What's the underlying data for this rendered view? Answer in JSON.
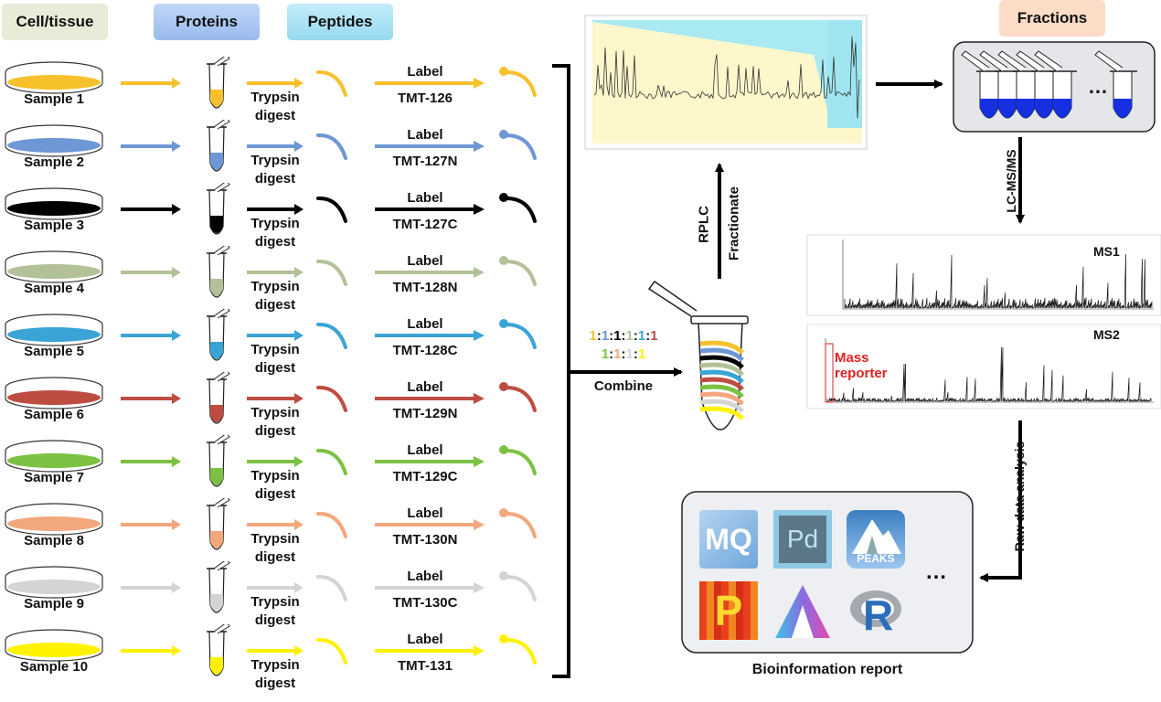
{
  "headers": {
    "cell_tissue": "Cell/tissue",
    "proteins": "Proteins",
    "peptides": "Peptides",
    "fractions": "Fractions"
  },
  "samples": [
    {
      "name": "Sample 1",
      "tag": "TMT-126",
      "color": "#F7C12C"
    },
    {
      "name": "Sample 2",
      "tag": "TMT-127N",
      "color": "#6D97D5"
    },
    {
      "name": "Sample 3",
      "tag": "TMT-127C",
      "color": "#000000"
    },
    {
      "name": "Sample 4",
      "tag": "TMT-128N",
      "color": "#B3C198"
    },
    {
      "name": "Sample 5",
      "tag": "TMT-128C",
      "color": "#3AA4D6"
    },
    {
      "name": "Sample 6",
      "tag": "TMT-129N",
      "color": "#BE4D41"
    },
    {
      "name": "Sample 7",
      "tag": "TMT-129C",
      "color": "#7BC142"
    },
    {
      "name": "Sample 8",
      "tag": "TMT-130N",
      "color": "#F2A77C"
    },
    {
      "name": "Sample 9",
      "tag": "TMT-130C",
      "color": "#D4D4D4"
    },
    {
      "name": "Sample 10",
      "tag": "TMT-131",
      "color": "#FFF200"
    }
  ],
  "step_labels": {
    "trypsin": "Trypsin",
    "digest": "digest",
    "label": "Label"
  },
  "ratio": {
    "line1": [
      "1",
      "1",
      "1",
      "1",
      "1",
      "1"
    ],
    "line2": [
      "1",
      "1",
      "1",
      "1"
    ],
    "separator": ":",
    "line1_colors": [
      "#F7C12C",
      "#6D97D5",
      "#000000",
      "#B3C198",
      "#3AA4D6",
      "#BE4D41"
    ],
    "line2_colors": [
      "#7BC142",
      "#F2A77C",
      "#D4D4D4",
      "#FFF200"
    ]
  },
  "combine_label": "Combine",
  "rplc_label": "RPLC",
  "fractionate_label": "Fractionate",
  "lcmsms_label": "LC-MS/MS",
  "raw_data_label": "Raw data analysis",
  "ms1_label": "MS1",
  "ms2_label": "MS2",
  "mass_reporter_label": "Mass\nreporter",
  "bioinfo_label": "Bioinformation report",
  "ellipsis": "…",
  "software_icons": [
    {
      "name": "maxquant-icon",
      "text": "MQ"
    },
    {
      "name": "proteome-discoverer-icon",
      "text": "Pd"
    },
    {
      "name": "peaks-icon",
      "text": "PEAKS"
    },
    {
      "name": "perseus-icon",
      "text": "P"
    },
    {
      "name": "spotfire-icon",
      "text": ""
    },
    {
      "name": "r-icon",
      "text": "R"
    }
  ],
  "colors": {
    "fractions_header_bg": "#FCDCC7",
    "proteins_header_bg": "#A9C7F2",
    "peptides_header_bg": "#A5E1F4",
    "cell_header_bg": "#EAEAD8",
    "panel_bg": "#EDEFF3",
    "fraction_fill": "#1530E0",
    "mass_reporter": "#E02020"
  }
}
